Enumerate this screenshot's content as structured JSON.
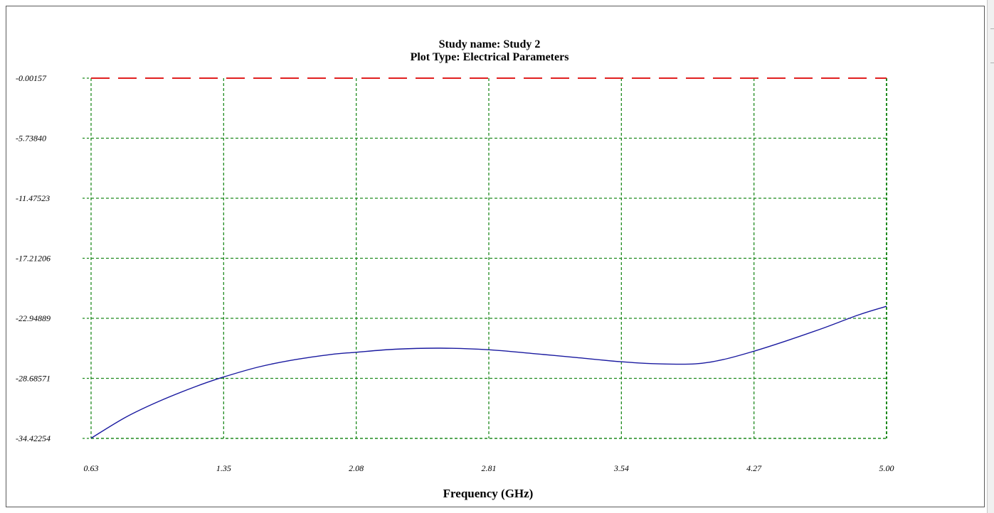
{
  "chart_data": {
    "type": "line",
    "title": "Study name: Study 2",
    "subtitle": "Plot Type: Electrical Parameters",
    "xlabel": "Frequency (GHz)",
    "ylabel": "",
    "x_ticks": [
      "0.63",
      "1.35",
      "2.08",
      "2.81",
      "3.54",
      "4.27",
      "5.00"
    ],
    "y_ticks": [
      "-0.00157",
      "-5.73840",
      "-11.47523",
      "-17.21206",
      "-22.94889",
      "-28.68571",
      "-34.42254"
    ],
    "xlim": [
      0.63,
      5.0
    ],
    "ylim": [
      -34.42254,
      -0.00157
    ],
    "grid": true,
    "series": [
      {
        "color": "#1a1aa0",
        "style": "solid",
        "x": [
          0.63,
          0.82,
          1.0,
          1.2,
          1.35,
          1.55,
          1.75,
          1.95,
          2.08,
          2.3,
          2.55,
          2.81,
          3.05,
          3.3,
          3.54,
          3.75,
          3.95,
          4.1,
          4.27,
          4.45,
          4.65,
          4.85,
          5.0
        ],
        "y": [
          -34.4,
          -32.4,
          -30.9,
          -29.5,
          -28.6,
          -27.6,
          -26.9,
          -26.4,
          -26.2,
          -25.9,
          -25.8,
          -25.95,
          -26.3,
          -26.7,
          -27.1,
          -27.3,
          -27.3,
          -26.9,
          -26.1,
          -25.1,
          -23.9,
          -22.6,
          -21.8
        ]
      },
      {
        "color": "#e02020",
        "style": "dashed",
        "x": [
          0.63,
          5.0
        ],
        "y": [
          -0.00157,
          -0.00157
        ]
      }
    ]
  }
}
